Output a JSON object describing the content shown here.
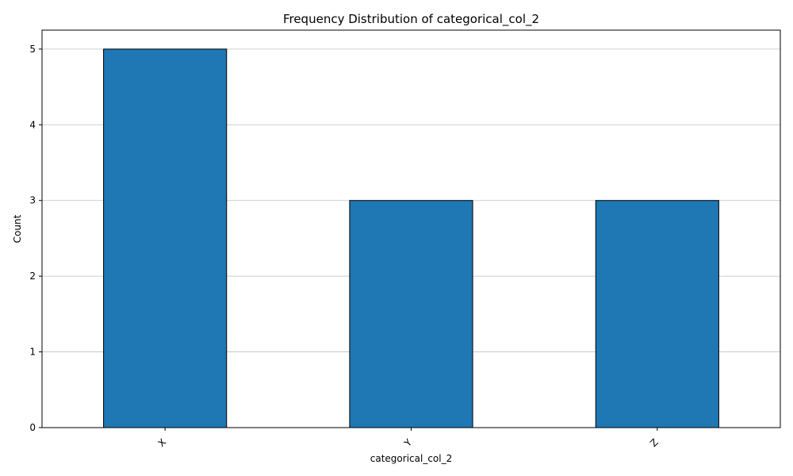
{
  "chart_data": {
    "type": "bar",
    "title": "Frequency Distribution of categorical_col_2",
    "xlabel": "categorical_col_2",
    "ylabel": "Count",
    "categories": [
      "X",
      "Y",
      "Z"
    ],
    "values": [
      5,
      3,
      3
    ],
    "ylim": [
      0,
      5.25
    ],
    "yticks": [
      "0",
      "1",
      "2",
      "3",
      "4",
      "5"
    ],
    "grid": "horizontal",
    "colors": {
      "bar_fill": "#1f77b4",
      "bar_edge": "#000000",
      "grid": "#c0c0c0"
    }
  }
}
